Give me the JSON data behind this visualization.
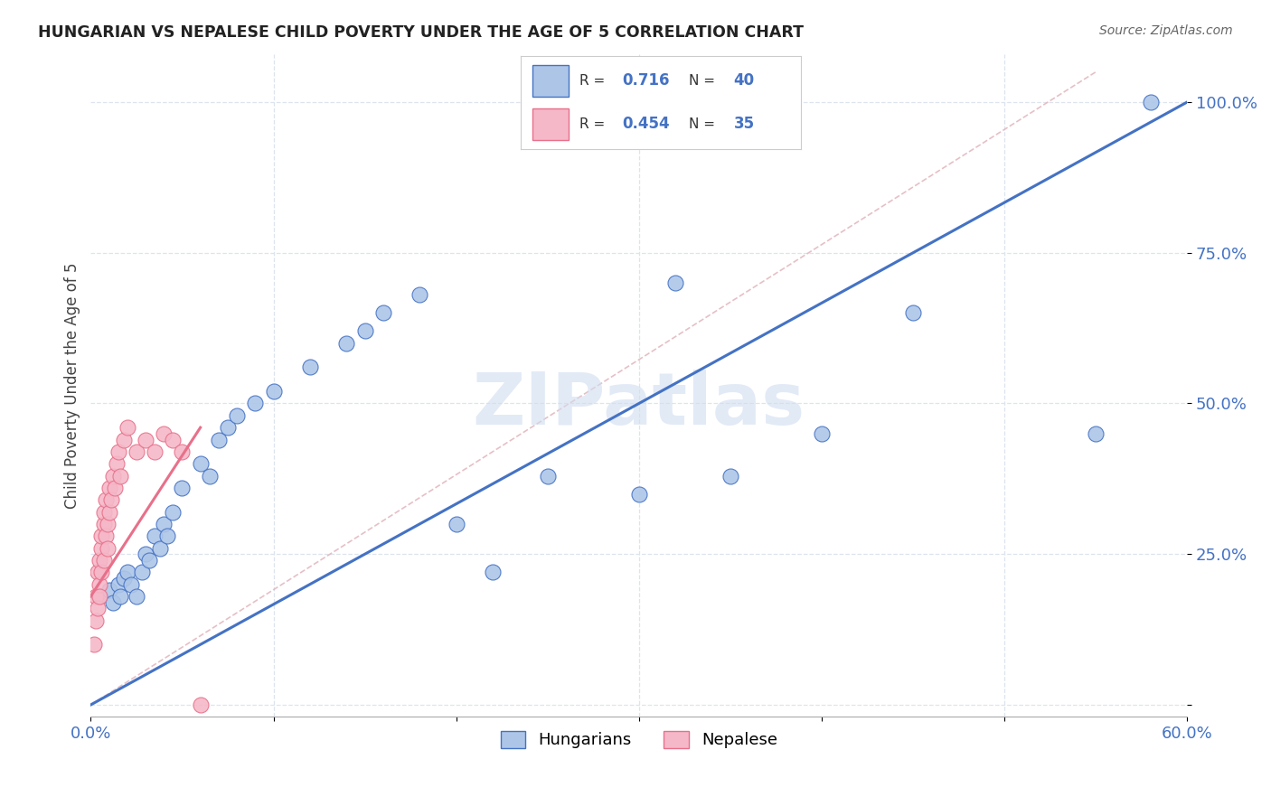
{
  "title": "HUNGARIAN VS NEPALESE CHILD POVERTY UNDER THE AGE OF 5 CORRELATION CHART",
  "source": "Source: ZipAtlas.com",
  "ylabel": "Child Poverty Under the Age of 5",
  "xlim": [
    0.0,
    0.6
  ],
  "ylim": [
    -0.02,
    1.08
  ],
  "hungarian_R": 0.716,
  "hungarian_N": 40,
  "nepalese_R": 0.454,
  "nepalese_N": 35,
  "hungarian_color": "#adc6e8",
  "nepalese_color": "#f5b8c8",
  "line_color_hungarian": "#4472c4",
  "line_color_nepalese": "#e8708a",
  "diagonal_color": "#e0b0b8",
  "background_color": "#ffffff",
  "grid_color": "#dde4ee",
  "watermark": "ZIPatlas",
  "watermark_color": "#d0ddf0",
  "hung_x": [
    0.005,
    0.01,
    0.012,
    0.015,
    0.016,
    0.018,
    0.02,
    0.022,
    0.025,
    0.028,
    0.03,
    0.032,
    0.035,
    0.038,
    0.04,
    0.042,
    0.045,
    0.05,
    0.06,
    0.065,
    0.07,
    0.075,
    0.08,
    0.09,
    0.1,
    0.12,
    0.14,
    0.15,
    0.16,
    0.18,
    0.2,
    0.22,
    0.25,
    0.3,
    0.32,
    0.35,
    0.4,
    0.45,
    0.55,
    0.58
  ],
  "hung_y": [
    0.18,
    0.19,
    0.17,
    0.2,
    0.18,
    0.21,
    0.22,
    0.2,
    0.18,
    0.22,
    0.25,
    0.24,
    0.28,
    0.26,
    0.3,
    0.28,
    0.32,
    0.36,
    0.4,
    0.38,
    0.44,
    0.46,
    0.48,
    0.5,
    0.52,
    0.56,
    0.6,
    0.62,
    0.65,
    0.68,
    0.3,
    0.22,
    0.38,
    0.35,
    0.7,
    0.38,
    0.45,
    0.65,
    0.45,
    1.0
  ],
  "nep_x": [
    0.002,
    0.003,
    0.003,
    0.004,
    0.004,
    0.005,
    0.005,
    0.005,
    0.006,
    0.006,
    0.006,
    0.007,
    0.007,
    0.007,
    0.008,
    0.008,
    0.009,
    0.009,
    0.01,
    0.01,
    0.011,
    0.012,
    0.013,
    0.014,
    0.015,
    0.016,
    0.018,
    0.02,
    0.025,
    0.03,
    0.035,
    0.04,
    0.045,
    0.05,
    0.06
  ],
  "nep_y": [
    0.1,
    0.14,
    0.18,
    0.16,
    0.22,
    0.2,
    0.18,
    0.24,
    0.22,
    0.26,
    0.28,
    0.3,
    0.24,
    0.32,
    0.28,
    0.34,
    0.26,
    0.3,
    0.32,
    0.36,
    0.34,
    0.38,
    0.36,
    0.4,
    0.42,
    0.38,
    0.44,
    0.46,
    0.42,
    0.44,
    0.42,
    0.45,
    0.44,
    0.42,
    0.0
  ],
  "hung_line_x": [
    0.0,
    0.6
  ],
  "hung_line_y": [
    0.0,
    1.0
  ],
  "nep_line_x": [
    0.0,
    0.06
  ],
  "nep_line_y": [
    0.18,
    0.46
  ]
}
